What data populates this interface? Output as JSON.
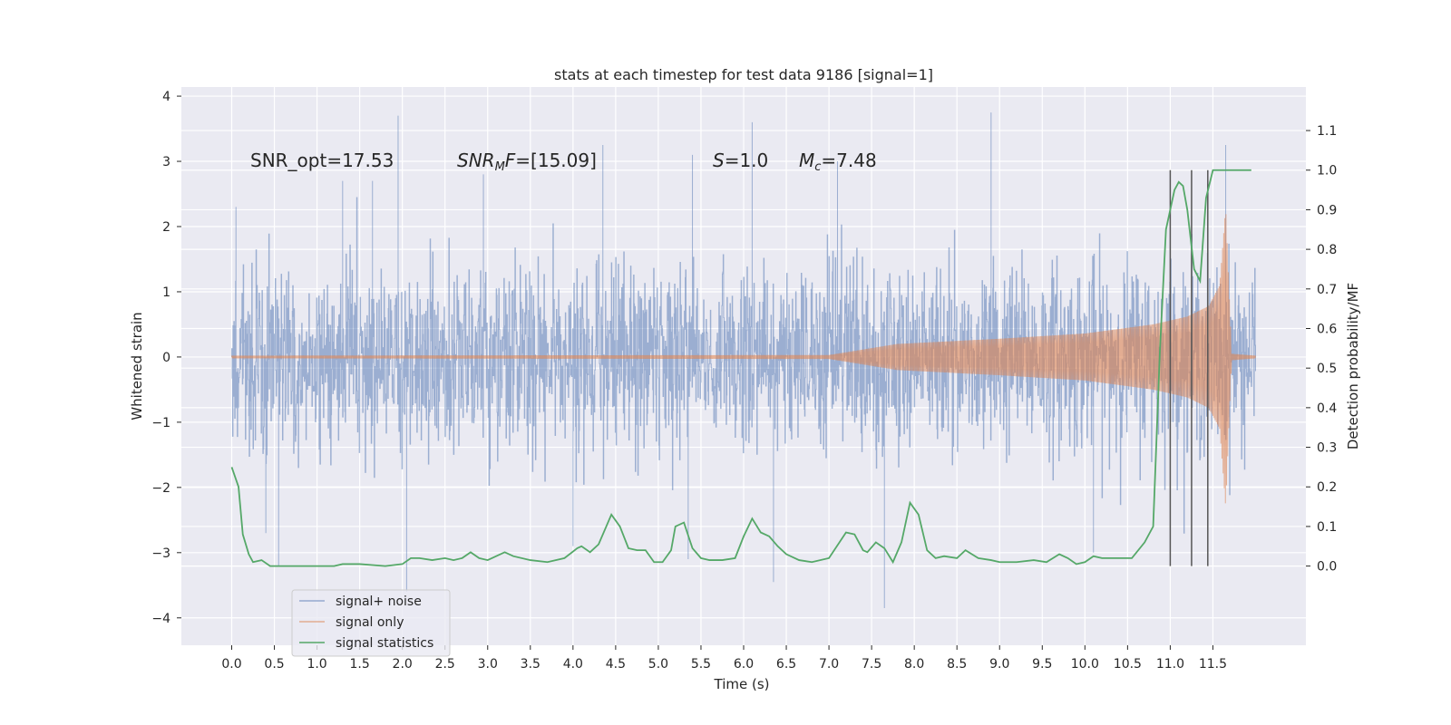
{
  "chart_data": {
    "type": "line",
    "title": "stats at each timestep for test data 9186 [signal=1]",
    "xlabel": "Time (s)",
    "ylabel_left": "Whitened strain",
    "ylabel_right": "Detection probability/MF",
    "xlim": [
      -0.59,
      12.59
    ],
    "ylim_left": [
      -4.42,
      4.14
    ],
    "ylim_right": [
      -0.2,
      1.21
    ],
    "x_ticks": [
      "0.0",
      "0.5",
      "1.0",
      "1.5",
      "2.0",
      "2.5",
      "3.0",
      "3.5",
      "4.0",
      "4.5",
      "5.0",
      "5.5",
      "6.0",
      "6.5",
      "7.0",
      "7.5",
      "8.0",
      "8.5",
      "9.0",
      "9.5",
      "10.0",
      "10.5",
      "11.0",
      "11.5"
    ],
    "y_left_ticks": [
      "4",
      "3",
      "2",
      "1",
      "0",
      "−1",
      "−2",
      "−3",
      "−4"
    ],
    "y_right_ticks": [
      "1.1",
      "1.0",
      "0.9",
      "0.8",
      "0.7",
      "0.6",
      "0.5",
      "0.4",
      "0.3",
      "0.2",
      "0.1",
      "0.0"
    ],
    "grid": true,
    "legend_location": "lower-left",
    "annotations": {
      "snr_opt": "SNR_opt=17.53",
      "snr_mf_sym": "SNR",
      "snr_mf_sub": "M",
      "snr_mf_sym2": "F",
      "snr_mf_val": "=[15.09]",
      "s_sym": "S",
      "s_val": "=1.0",
      "mc_sym": "M",
      "mc_sub": "c",
      "mc_val": "=7.48"
    },
    "vertical_markers": [
      11.0,
      11.25,
      11.44
    ],
    "series": [
      {
        "name": "signal+ noise",
        "color": "#4c72b0",
        "time_range": [
          0.0,
          12.0
        ],
        "envelope_typical": [
          -1.7,
          1.7
        ],
        "peaks": [
          {
            "x": 0.05,
            "y": 2.3
          },
          {
            "x": 0.4,
            "y": -2.7
          },
          {
            "x": 0.55,
            "y": -3.2
          },
          {
            "x": 1.3,
            "y": 2.7
          },
          {
            "x": 1.65,
            "y": 2.7
          },
          {
            "x": 1.95,
            "y": 3.7
          },
          {
            "x": 2.05,
            "y": -3.6
          },
          {
            "x": 2.95,
            "y": 2.8
          },
          {
            "x": 4.0,
            "y": -2.9
          },
          {
            "x": 4.35,
            "y": 3.25
          },
          {
            "x": 5.35,
            "y": -3.1
          },
          {
            "x": 5.4,
            "y": 3.1
          },
          {
            "x": 6.1,
            "y": 3.6
          },
          {
            "x": 6.35,
            "y": -3.45
          },
          {
            "x": 7.1,
            "y": 3.0
          },
          {
            "x": 7.65,
            "y": -3.85
          },
          {
            "x": 8.9,
            "y": 3.75
          },
          {
            "x": 10.1,
            "y": -3.0
          },
          {
            "x": 11.65,
            "y": 3.25
          }
        ]
      },
      {
        "name": "signal only",
        "color": "#dd8452",
        "amplitude": [
          [
            0.0,
            0.02
          ],
          [
            7.0,
            0.03
          ],
          [
            7.8,
            0.2
          ],
          [
            9.0,
            0.28
          ],
          [
            10.0,
            0.36
          ],
          [
            10.8,
            0.5
          ],
          [
            11.2,
            0.62
          ],
          [
            11.45,
            0.78
          ],
          [
            11.58,
            1.1
          ],
          [
            11.65,
            2.3
          ],
          [
            11.68,
            1.3
          ],
          [
            11.72,
            0.05
          ],
          [
            12.0,
            0.02
          ]
        ]
      },
      {
        "name": "signal statistics",
        "color": "#55a868",
        "x": [
          0.0,
          0.08,
          0.13,
          0.2,
          0.25,
          0.35,
          0.45,
          0.55,
          0.8,
          1.0,
          1.2,
          1.3,
          1.5,
          1.8,
          2.0,
          2.1,
          2.2,
          2.35,
          2.5,
          2.6,
          2.7,
          2.8,
          2.9,
          3.0,
          3.1,
          3.2,
          3.3,
          3.5,
          3.7,
          3.9,
          4.05,
          4.1,
          4.2,
          4.3,
          4.45,
          4.55,
          4.65,
          4.75,
          4.85,
          4.95,
          5.05,
          5.15,
          5.2,
          5.3,
          5.4,
          5.5,
          5.6,
          5.75,
          5.9,
          6.0,
          6.1,
          6.2,
          6.3,
          6.4,
          6.5,
          6.65,
          6.8,
          7.0,
          7.2,
          7.3,
          7.4,
          7.45,
          7.55,
          7.65,
          7.75,
          7.85,
          7.95,
          8.05,
          8.15,
          8.25,
          8.35,
          8.5,
          8.6,
          8.75,
          8.9,
          9.0,
          9.2,
          9.4,
          9.55,
          9.7,
          9.8,
          9.9,
          10.0,
          10.1,
          10.2,
          10.3,
          10.4,
          10.55,
          10.7,
          10.8,
          10.88,
          10.95,
          11.05,
          11.1,
          11.15,
          11.2,
          11.28,
          11.35,
          11.42,
          11.5,
          11.55,
          11.62,
          11.7,
          11.8,
          11.95
        ],
        "y": [
          0.25,
          0.2,
          0.08,
          0.03,
          0.01,
          0.015,
          0.0,
          0.0,
          0.0,
          0.0,
          0.0,
          0.005,
          0.005,
          0.0,
          0.005,
          0.02,
          0.02,
          0.015,
          0.02,
          0.015,
          0.02,
          0.035,
          0.02,
          0.015,
          0.025,
          0.035,
          0.025,
          0.015,
          0.01,
          0.02,
          0.045,
          0.05,
          0.035,
          0.055,
          0.13,
          0.1,
          0.045,
          0.04,
          0.04,
          0.01,
          0.01,
          0.04,
          0.1,
          0.11,
          0.045,
          0.02,
          0.015,
          0.015,
          0.02,
          0.075,
          0.12,
          0.085,
          0.075,
          0.05,
          0.03,
          0.015,
          0.01,
          0.02,
          0.085,
          0.08,
          0.04,
          0.035,
          0.06,
          0.045,
          0.01,
          0.06,
          0.16,
          0.13,
          0.04,
          0.02,
          0.025,
          0.02,
          0.04,
          0.02,
          0.015,
          0.01,
          0.01,
          0.015,
          0.01,
          0.03,
          0.02,
          0.005,
          0.01,
          0.025,
          0.02,
          0.02,
          0.02,
          0.02,
          0.06,
          0.1,
          0.55,
          0.85,
          0.95,
          0.97,
          0.96,
          0.9,
          0.75,
          0.72,
          0.93,
          1.0,
          1.0,
          1.0,
          1.0,
          1.0,
          1.0
        ]
      }
    ]
  }
}
